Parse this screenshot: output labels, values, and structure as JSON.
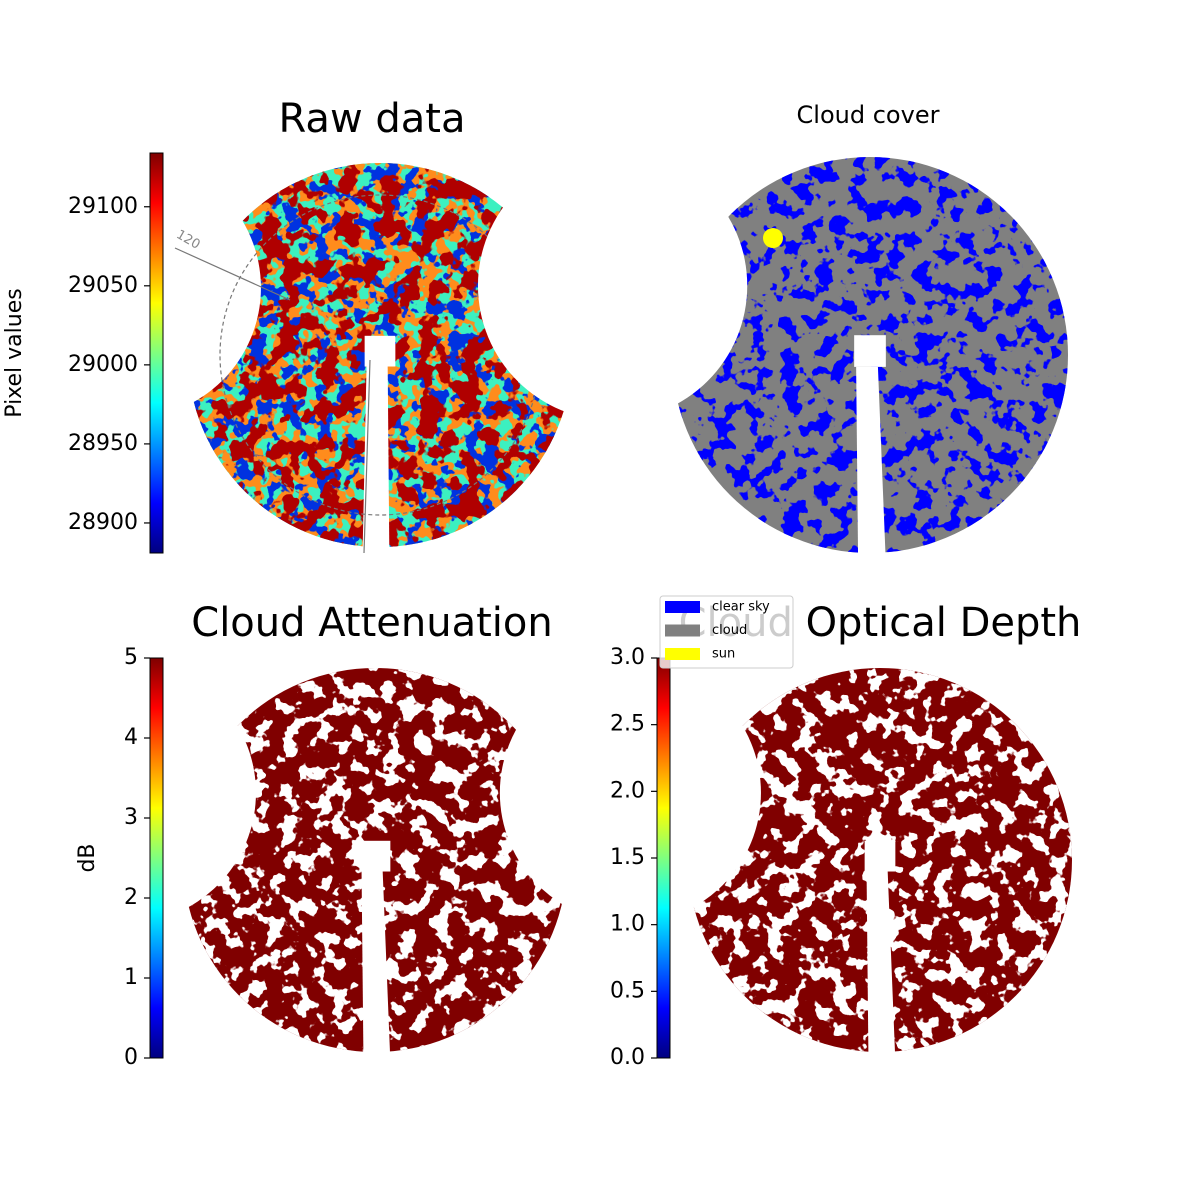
{
  "chart_data": [
    {
      "type": "image",
      "title": "Raw data",
      "annotation": "120",
      "colorbar_label": "Pixel values",
      "ylim": [
        28881,
        29134
      ],
      "yticks": [
        28900,
        28950,
        29000,
        29050,
        29100
      ]
    },
    {
      "type": "image",
      "title": "Cloud cover",
      "series": [
        {
          "name": "clear sky",
          "color": "#0000ff"
        },
        {
          "name": "cloud",
          "color": "#808080"
        },
        {
          "name": "sun",
          "color": "#ffff00"
        }
      ]
    },
    {
      "type": "image",
      "title": "Cloud Attenuation",
      "colorbar_label": "dB",
      "ylim": [
        0,
        5
      ],
      "yticks": [
        0,
        1,
        2,
        3,
        4,
        5
      ]
    },
    {
      "type": "image",
      "title": "Cloud Optical Depth",
      "ylim": [
        0,
        3
      ],
      "yticks": [
        {
          "value": 0,
          "label": "0.0"
        },
        0.5,
        {
          "value": 1,
          "label": "1.0"
        },
        1.5,
        {
          "value": 2,
          "label": "2.0"
        },
        2.5,
        {
          "value": 3,
          "label": "3.0"
        }
      ]
    }
  ]
}
